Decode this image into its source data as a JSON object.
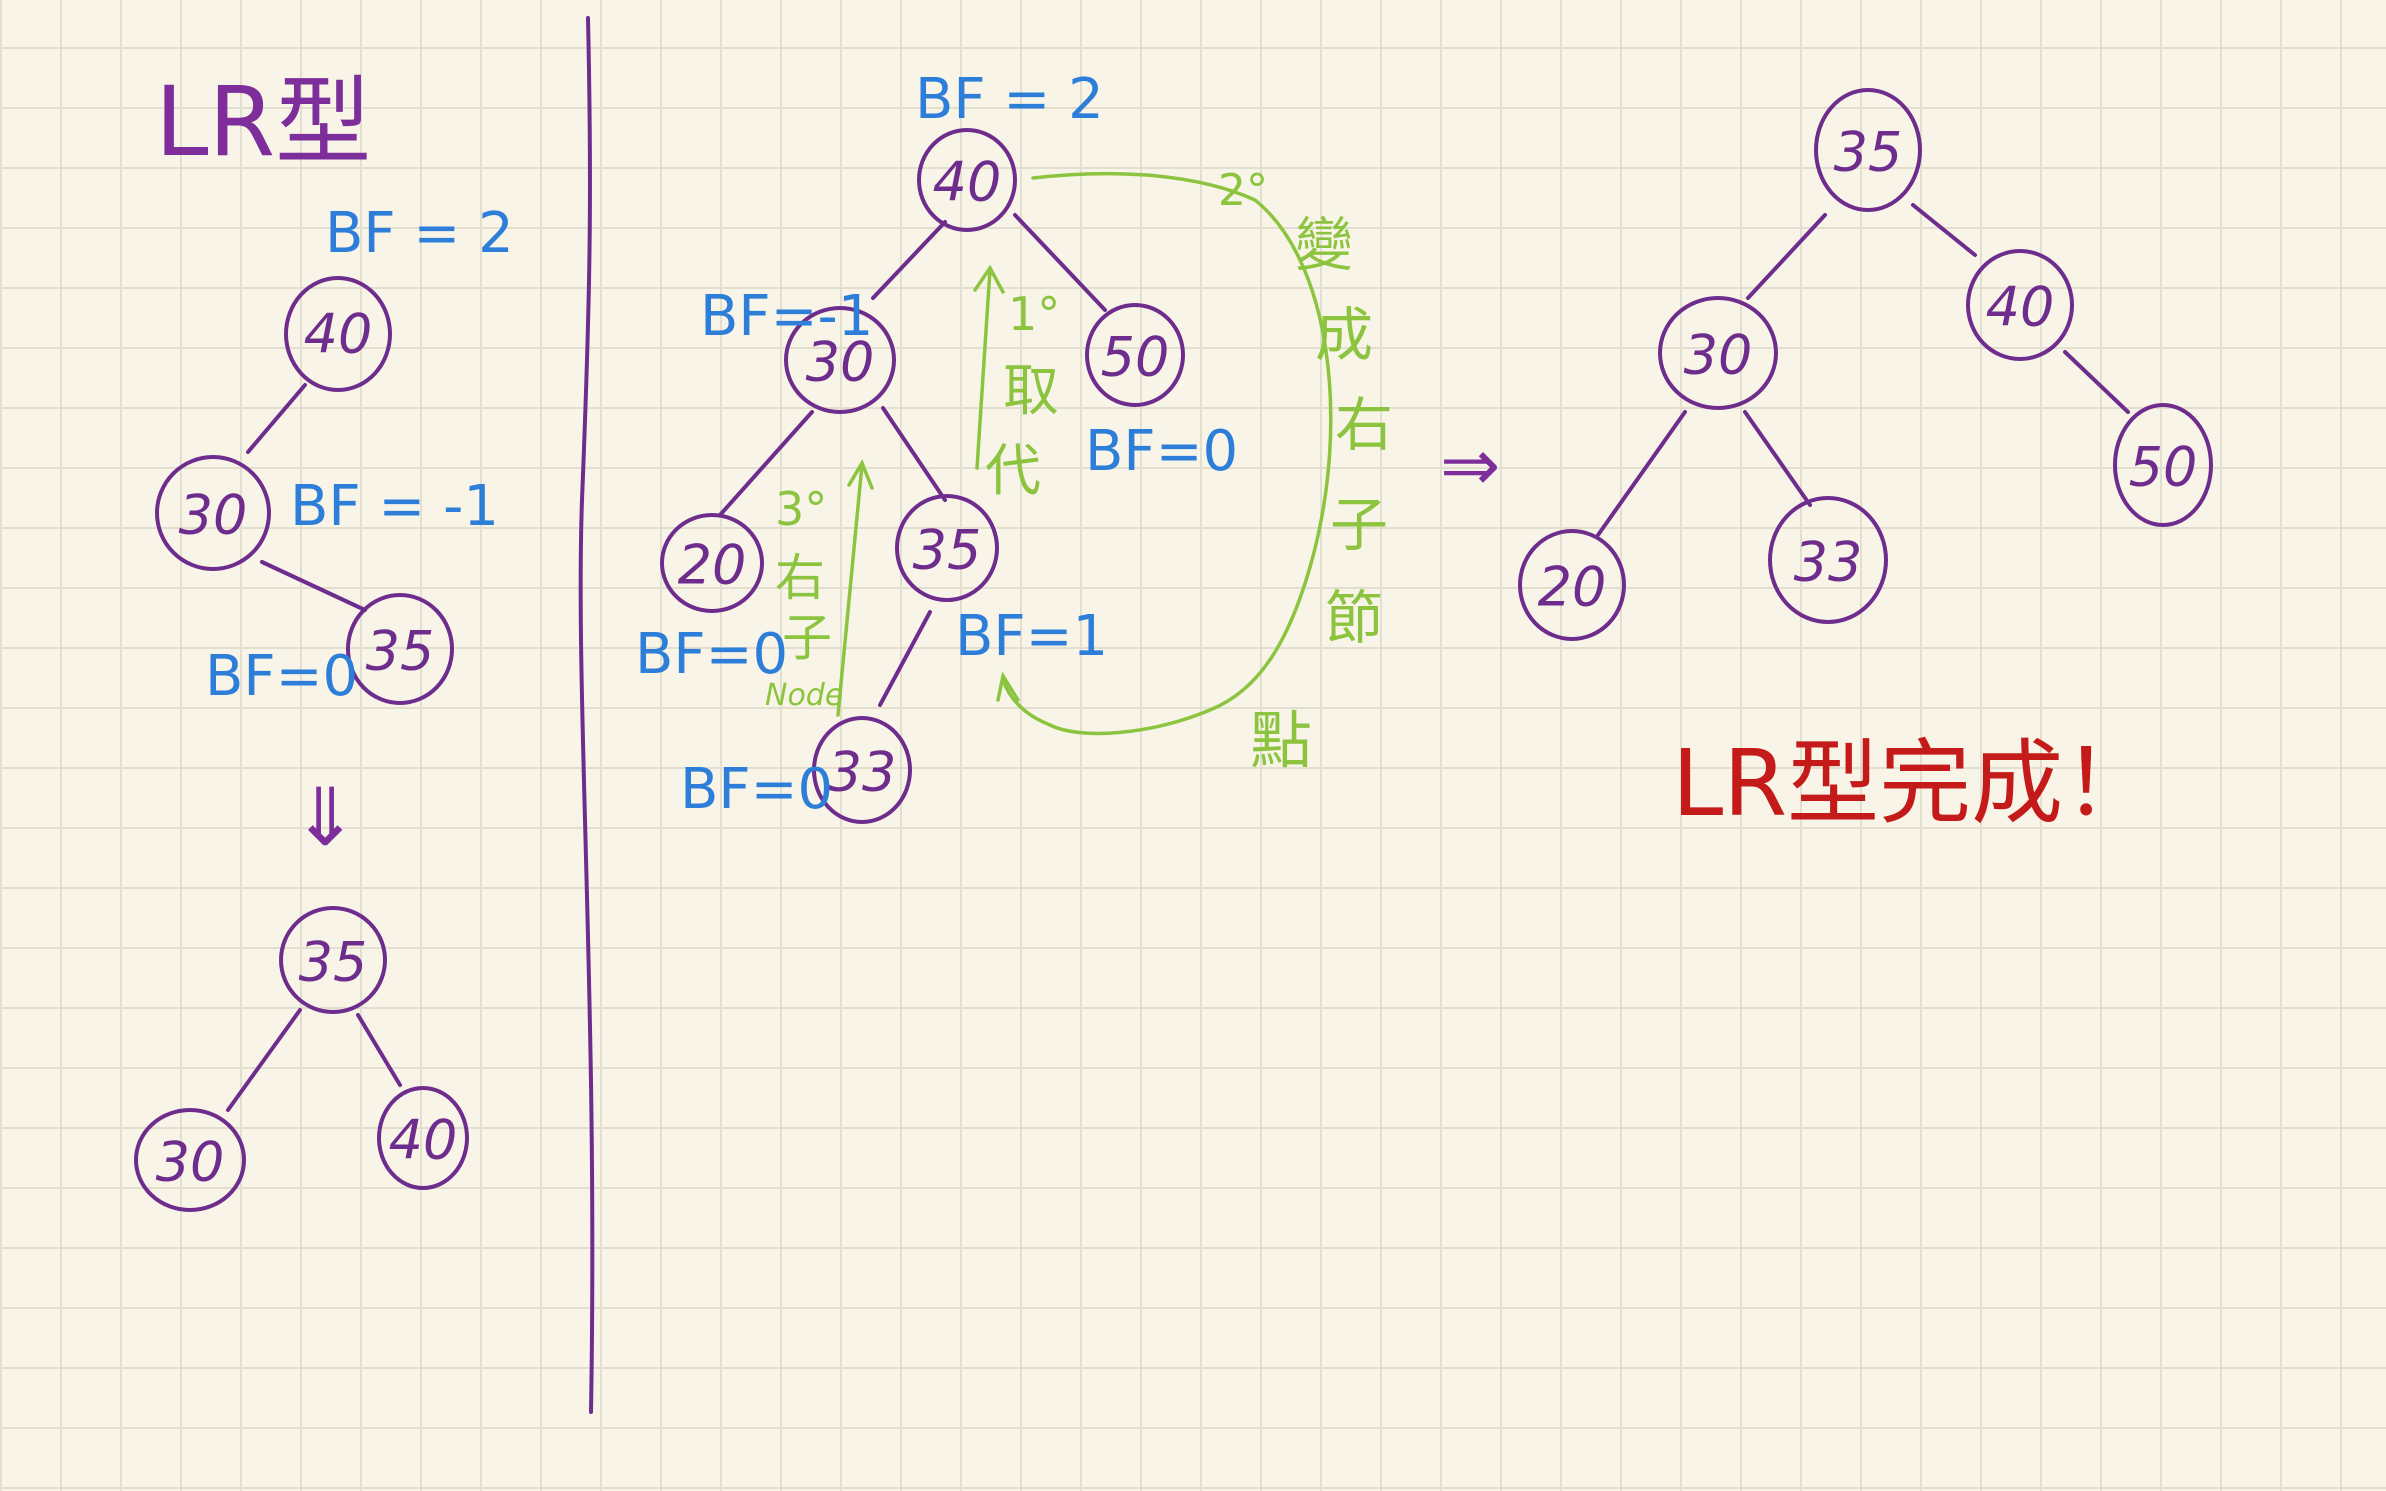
{
  "left_panel": {
    "title": "LR型",
    "before": {
      "nodes": [
        {
          "value": "40",
          "bf": "BF = 2"
        },
        {
          "value": "30",
          "bf": "BF = -1"
        },
        {
          "value": "35",
          "bf": "BF=0"
        }
      ]
    },
    "arrow": "⇓",
    "after": {
      "nodes": [
        {
          "value": "35"
        },
        {
          "value": "30"
        },
        {
          "value": "40"
        }
      ]
    }
  },
  "middle_panel": {
    "nodes": [
      {
        "value": "40",
        "bf": "BF = 2"
      },
      {
        "value": "30",
        "bf": "BF=-1"
      },
      {
        "value": "50",
        "bf": "BF=0"
      },
      {
        "value": "20",
        "bf": "BF=0"
      },
      {
        "value": "35",
        "bf": "BF=1"
      },
      {
        "value": "33",
        "bf": "BF=0"
      }
    ],
    "steps": {
      "step1_num": "1°",
      "step1_text": [
        "取",
        "代"
      ],
      "step2_num": "2°",
      "step2_text": [
        "變",
        "成",
        "右",
        "子",
        "節"
      ],
      "step2_tail": "點",
      "step3_num": "3°",
      "step3_text": [
        "右",
        "子"
      ],
      "step3_node": "Node"
    }
  },
  "result_panel": {
    "arrow": "⇒",
    "nodes": [
      {
        "value": "35"
      },
      {
        "value": "30"
      },
      {
        "value": "40"
      },
      {
        "value": "20"
      },
      {
        "value": "33"
      },
      {
        "value": "50"
      }
    ],
    "done_text": "LR型完成！"
  },
  "colors": {
    "node": "#6e2c8c",
    "bf": "#2d7ed8",
    "steps": "#8cc440",
    "done": "#c41a1a",
    "divider": "#6e2c8c",
    "grid": "#e2dfd0",
    "paper": "#f8f5e8"
  }
}
